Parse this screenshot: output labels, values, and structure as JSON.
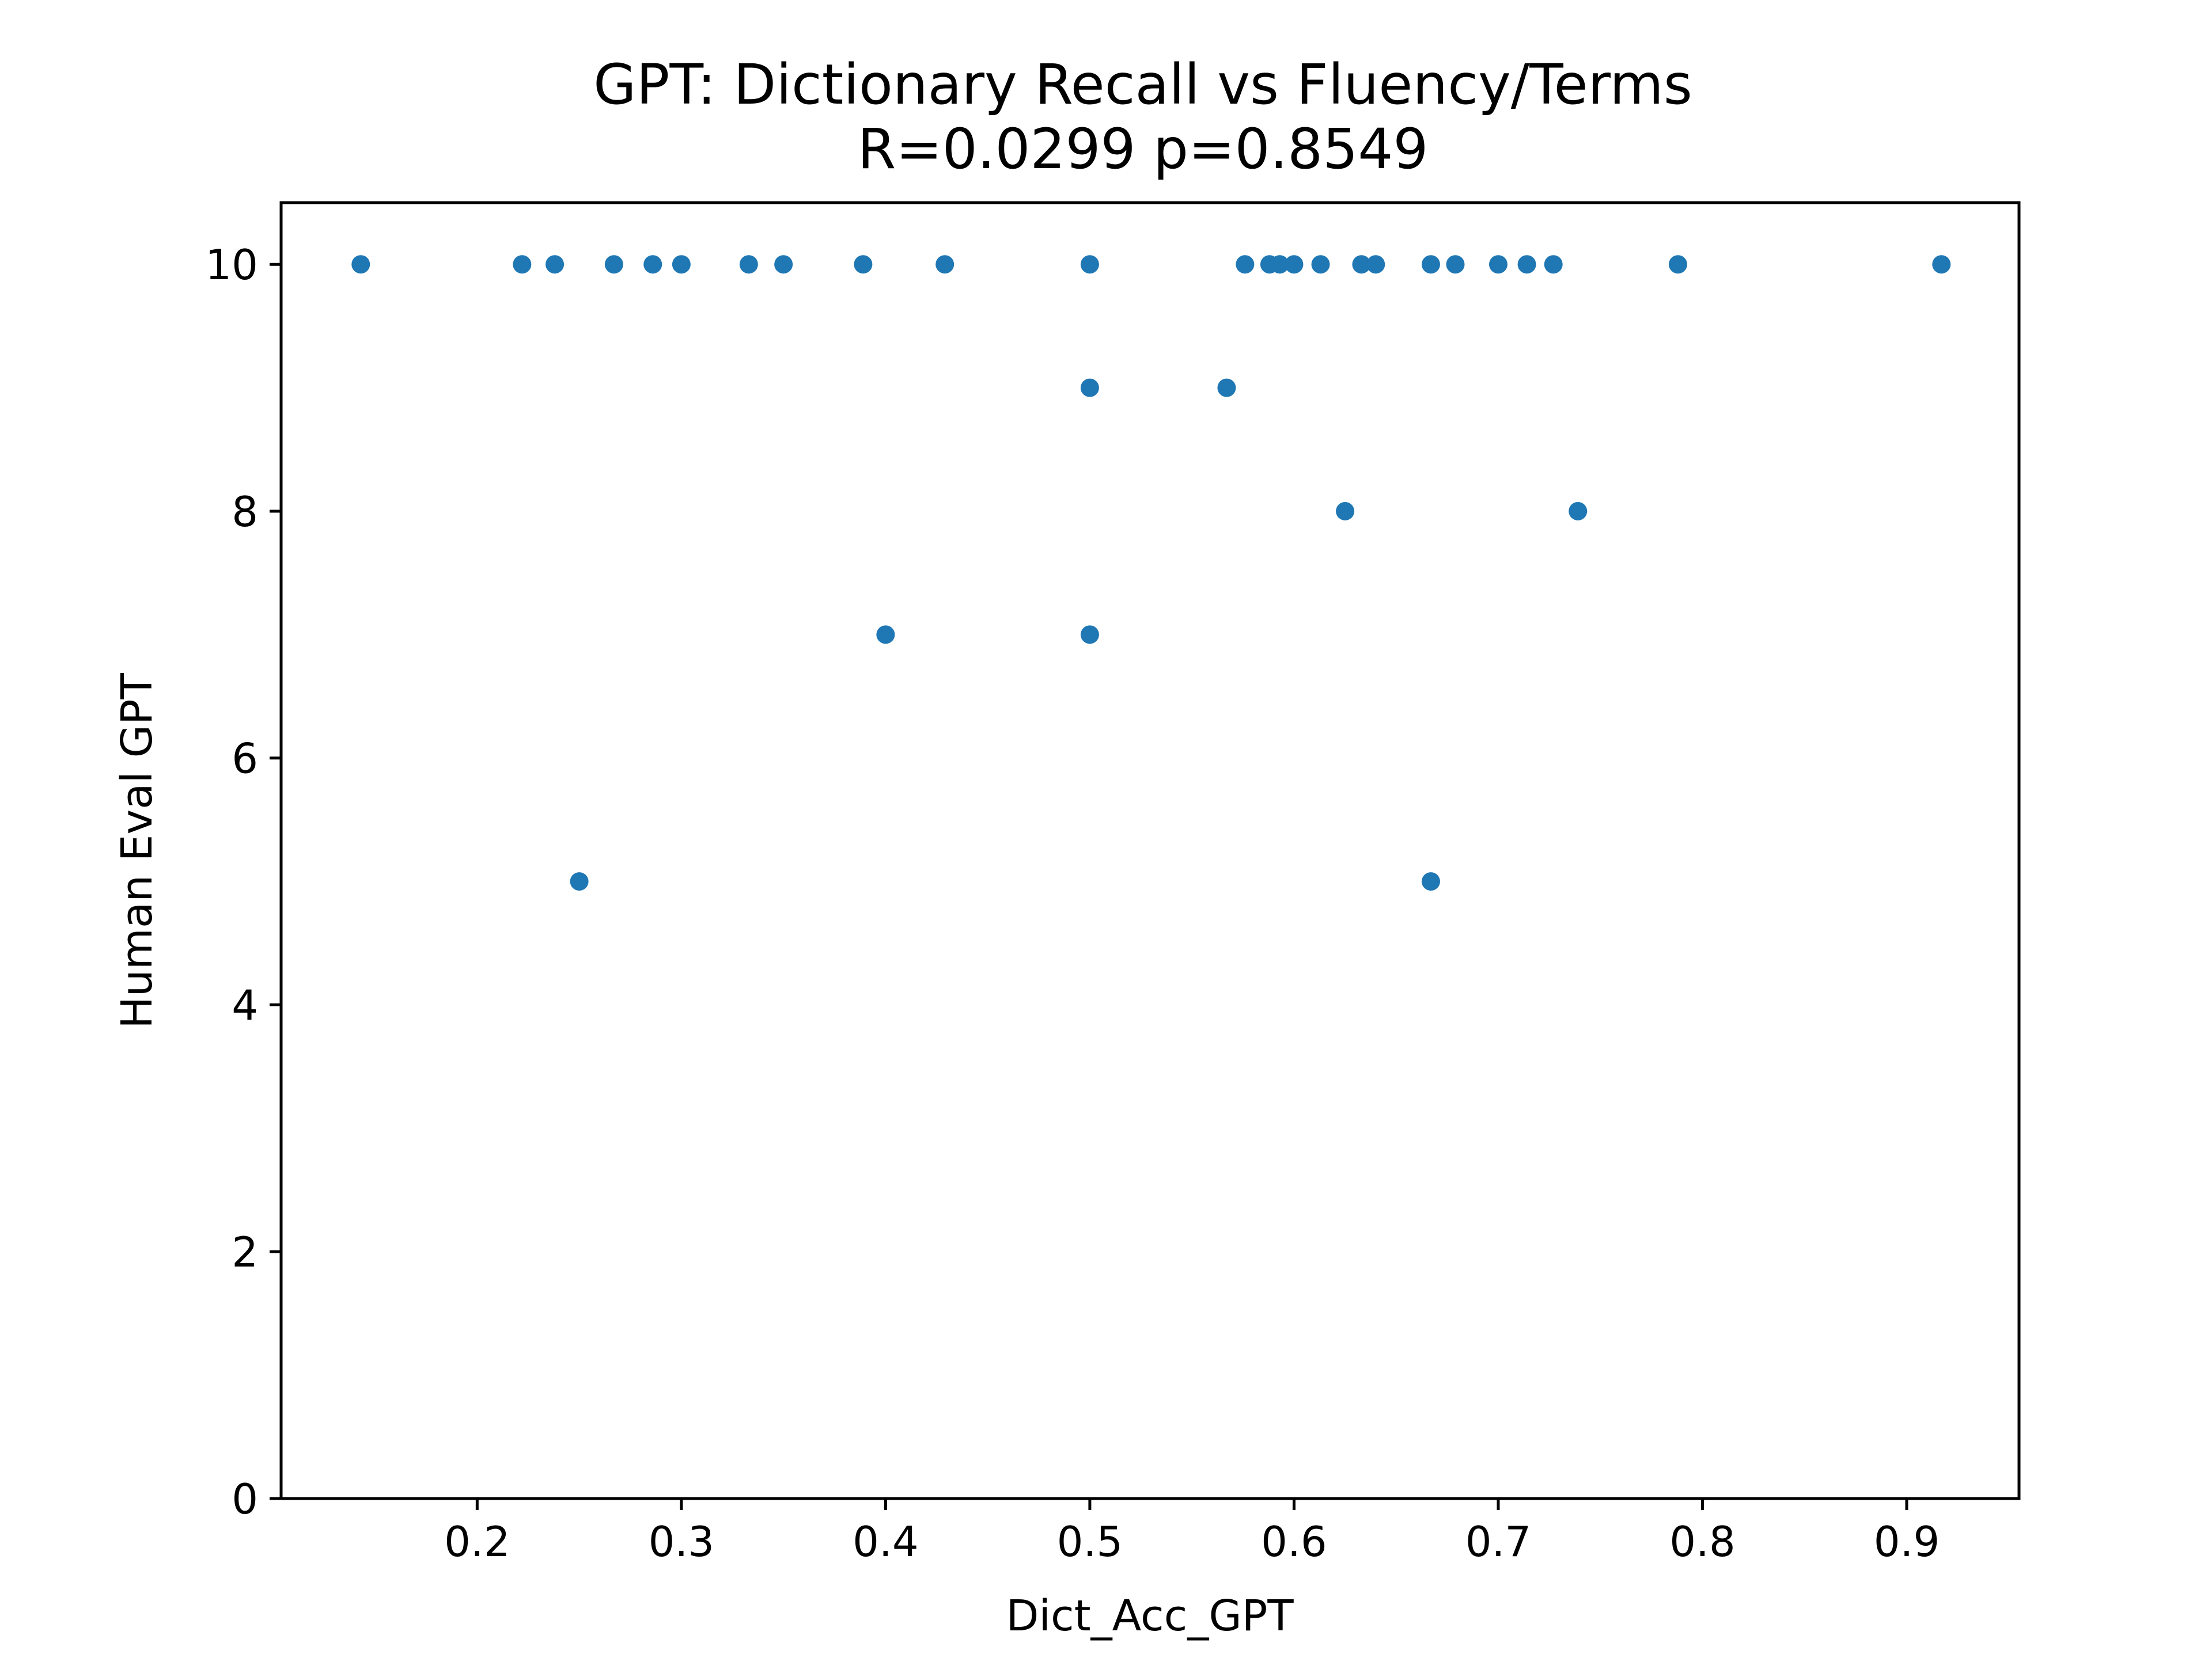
{
  "chart_data": {
    "type": "scatter",
    "title": "GPT: Dictionary Recall vs Fluency/Terms",
    "subtitle": "R=0.0299 p=0.8549",
    "xlabel": "Dict_Acc_GPT",
    "ylabel": "Human Eval GPT",
    "xlim": [
      0.104,
      0.955
    ],
    "ylim": [
      0,
      10.5
    ],
    "xticks": [
      0.2,
      0.3,
      0.4,
      0.5,
      0.6,
      0.7,
      0.8,
      0.9
    ],
    "xtick_labels": [
      "0.2",
      "0.3",
      "0.4",
      "0.5",
      "0.6",
      "0.7",
      "0.8",
      "0.9"
    ],
    "yticks": [
      0,
      2,
      4,
      6,
      8,
      10
    ],
    "ytick_labels": [
      "0",
      "2",
      "4",
      "6",
      "8",
      "10"
    ],
    "grid": false,
    "marker_color": "#1f77b4",
    "points": [
      {
        "x": 0.143,
        "y": 10
      },
      {
        "x": 0.222,
        "y": 10
      },
      {
        "x": 0.238,
        "y": 10
      },
      {
        "x": 0.267,
        "y": 10
      },
      {
        "x": 0.286,
        "y": 10
      },
      {
        "x": 0.3,
        "y": 10
      },
      {
        "x": 0.333,
        "y": 10
      },
      {
        "x": 0.35,
        "y": 10
      },
      {
        "x": 0.389,
        "y": 10
      },
      {
        "x": 0.429,
        "y": 10
      },
      {
        "x": 0.5,
        "y": 10
      },
      {
        "x": 0.576,
        "y": 10
      },
      {
        "x": 0.588,
        "y": 10
      },
      {
        "x": 0.593,
        "y": 10
      },
      {
        "x": 0.6,
        "y": 10
      },
      {
        "x": 0.613,
        "y": 10
      },
      {
        "x": 0.633,
        "y": 10
      },
      {
        "x": 0.64,
        "y": 10
      },
      {
        "x": 0.667,
        "y": 10
      },
      {
        "x": 0.679,
        "y": 10
      },
      {
        "x": 0.7,
        "y": 10
      },
      {
        "x": 0.714,
        "y": 10
      },
      {
        "x": 0.727,
        "y": 10
      },
      {
        "x": 0.788,
        "y": 10
      },
      {
        "x": 0.917,
        "y": 10
      },
      {
        "x": 0.5,
        "y": 9
      },
      {
        "x": 0.567,
        "y": 9
      },
      {
        "x": 0.625,
        "y": 8
      },
      {
        "x": 0.739,
        "y": 8
      },
      {
        "x": 0.4,
        "y": 7
      },
      {
        "x": 0.5,
        "y": 7
      },
      {
        "x": 0.25,
        "y": 5
      },
      {
        "x": 0.667,
        "y": 5
      }
    ]
  }
}
